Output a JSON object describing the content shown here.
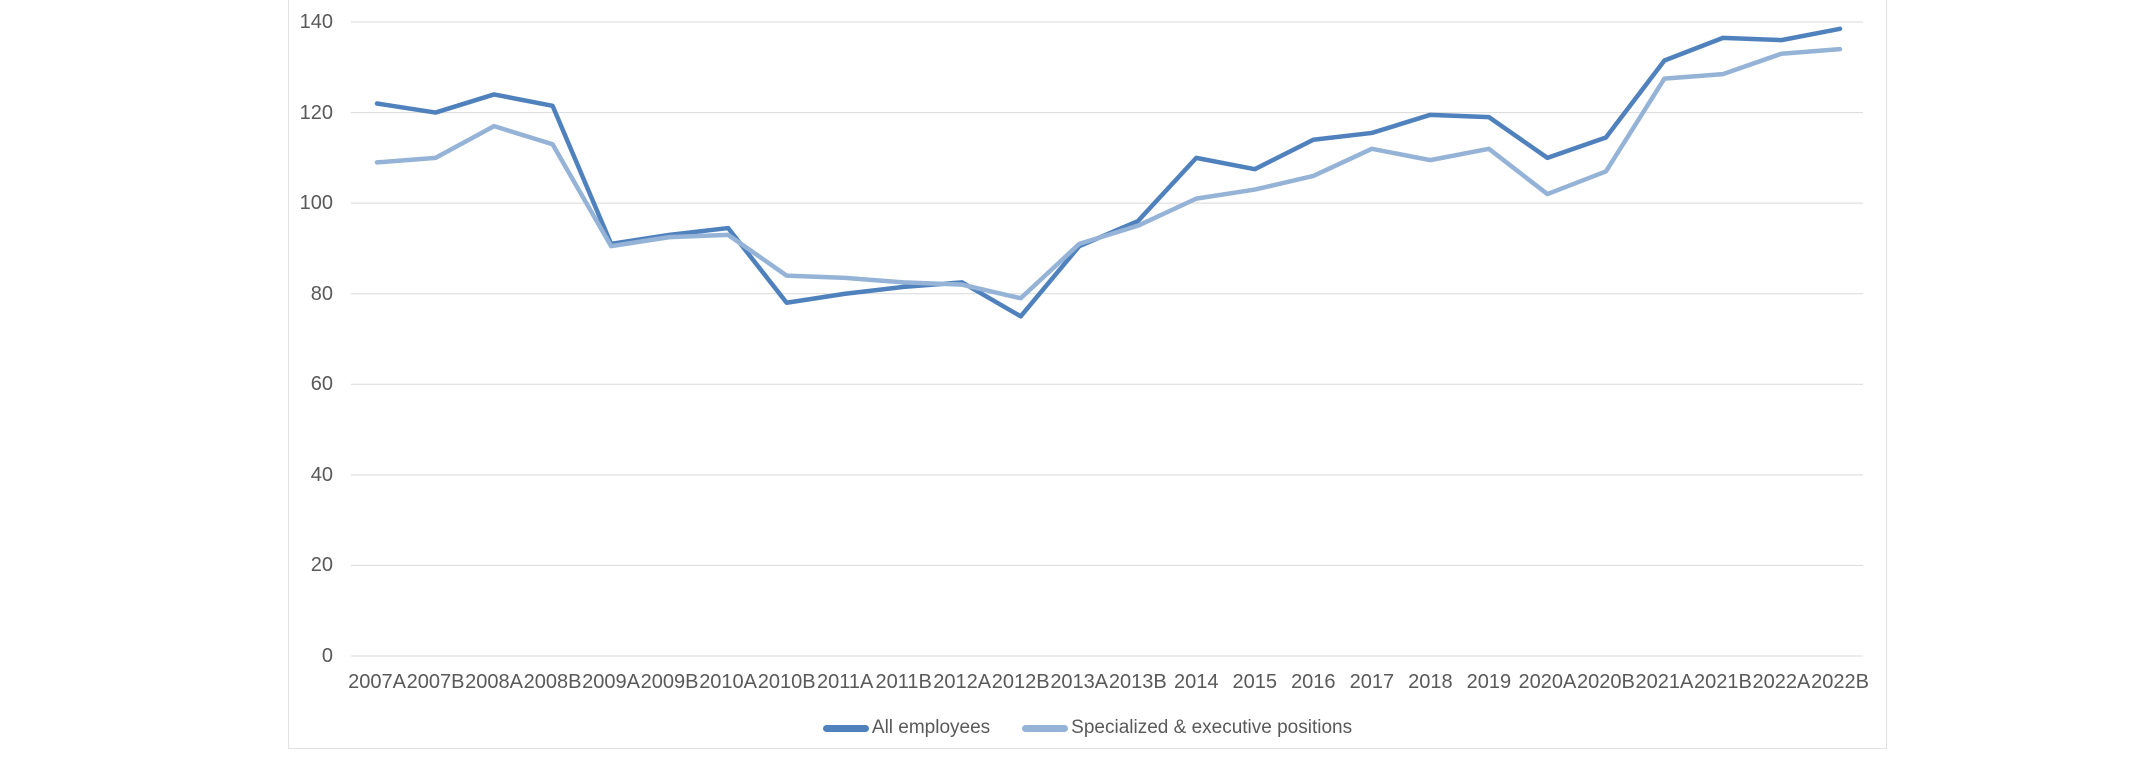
{
  "chart_data": {
    "type": "line",
    "title": "",
    "xlabel": "",
    "ylabel": "",
    "categories": [
      "2007A",
      "2007B",
      "2008A",
      "2008B",
      "2009A",
      "2009B",
      "2010A",
      "2010B",
      "2011A",
      "2011B",
      "2012A",
      "2012B",
      "2013A",
      "2013B",
      "2014",
      "2015",
      "2016",
      "2017",
      "2018",
      "2019",
      "2020A",
      "2020B",
      "2021A",
      "2021B",
      "2022A",
      "2022B"
    ],
    "series": [
      {
        "name": "All employees",
        "color": "#4f81bd",
        "values": [
          122,
          120,
          124,
          121.5,
          91,
          93,
          94.5,
          78,
          80,
          81.5,
          82.5,
          75,
          90.5,
          96,
          110,
          107.5,
          114,
          115.5,
          119.5,
          119,
          110,
          114.5,
          131.5,
          136.5,
          136,
          138.5
        ]
      },
      {
        "name": "Specialized & executive positions",
        "color": "#95b3d7",
        "values": [
          109,
          110,
          117,
          113,
          90.5,
          92.5,
          93,
          84,
          83.5,
          82.5,
          82,
          79,
          91,
          95,
          101,
          103,
          106,
          112,
          109.5,
          112,
          102,
          107,
          127.5,
          128.5,
          133,
          134
        ]
      }
    ],
    "ylim": [
      0,
      140
    ],
    "ytick_step": 20,
    "ytick_labels": [
      "0",
      "20",
      "40",
      "60",
      "80",
      "100",
      "120",
      "140"
    ],
    "grid": true,
    "legend_position": "bottom",
    "gridline_color": "#d9d9d9",
    "axis_text_color": "#595959",
    "background_color": "#ffffff"
  }
}
